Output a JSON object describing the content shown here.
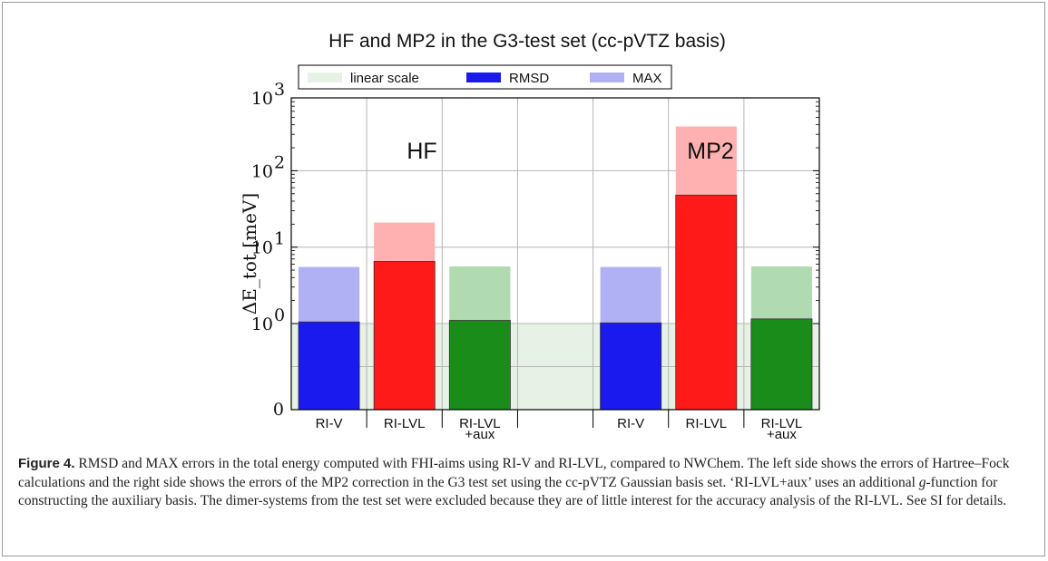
{
  "chart_data": {
    "type": "bar",
    "title": "HF and MP2 in the G3-test set (cc-pVTZ basis)",
    "ylabel": "ΔE_tot [meV]",
    "yscale": "symlog",
    "ytick_labels": [
      "0",
      "10^0",
      "10^1",
      "10^2",
      "10^3"
    ],
    "ylim": [
      0,
      1000
    ],
    "linear_region": [
      0,
      1
    ],
    "grid": true,
    "legend_position": "top",
    "legend": {
      "linear": "linear scale",
      "rmsd": "RMSD",
      "max": "MAX"
    },
    "group_labels": [
      "HF",
      "MP2"
    ],
    "categories": [
      {
        "line1": "RI-V",
        "line2": ""
      },
      {
        "line1": "RI-LVL",
        "line2": ""
      },
      {
        "line1": "RI-LVL",
        "line2": "+aux"
      },
      {
        "line1": "",
        "line2": ""
      },
      {
        "line1": "RI-V",
        "line2": ""
      },
      {
        "line1": "RI-LVL",
        "line2": ""
      },
      {
        "line1": "RI-LVL",
        "line2": "+aux"
      }
    ],
    "series": [
      {
        "name": "RMSD",
        "values": [
          1.05,
          6.5,
          1.1,
          null,
          1.02,
          48,
          1.15
        ]
      },
      {
        "name": "MAX",
        "values": [
          5.5,
          21,
          5.6,
          null,
          5.5,
          380,
          5.6
        ]
      }
    ],
    "colors": {
      "linear_bg": "#e6f2e6",
      "blue_rmsd": "#1a1aee",
      "blue_max": "#b0b0f4",
      "red_rmsd": "#ff1a1a",
      "red_max": "#ffb0b0",
      "green_rmsd": "#1a8c1a",
      "green_max": "#b0dab0"
    },
    "bar_colors": [
      "blue",
      "red",
      "green",
      null,
      "blue",
      "red",
      "green"
    ]
  },
  "caption": {
    "label": "Figure 4.",
    "text_1": " RMSD and MAX errors in the total energy computed with FHI-aims using RI-V and RI-LVL, compared to NWChem. The left side shows the errors of Hartree–Fock calculations and the right side shows the errors of the MP2 correction in the G3 test set using the cc-pVTZ Gaussian basis set. ‘RI-LVL+aux’ uses an additional ",
    "text_g": "g",
    "text_2": "-function for constructing the auxiliary basis. The dimer-systems from the test set were excluded because they are of little interest for the accuracy analysis of the RI-LVL. See SI for details."
  }
}
